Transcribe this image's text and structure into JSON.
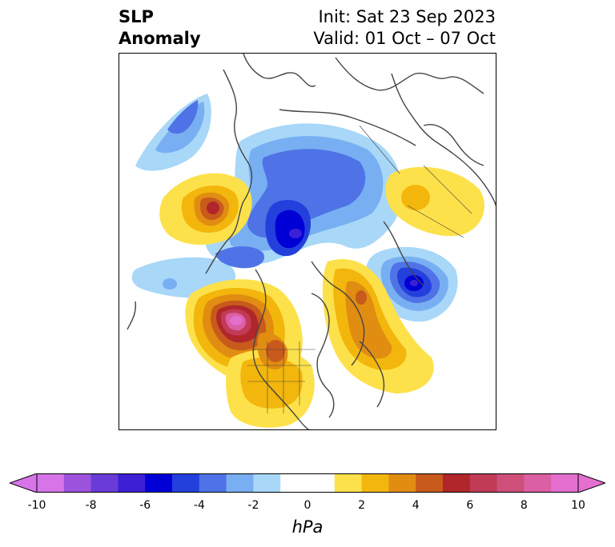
{
  "header": {
    "title_line1": "SLP",
    "title_line2": "Anomaly",
    "init": "Init: Sat 23 Sep 2023",
    "valid": "Valid: 01 Oct – 07 Oct"
  },
  "colorbar": {
    "unit": "hPa",
    "ticks": [
      "-10",
      "-8",
      "-6",
      "-4",
      "-2",
      "0",
      "2",
      "4",
      "6",
      "8",
      "10"
    ],
    "min": -10,
    "max": 10,
    "colors": [
      "#d774e8",
      "#9d52de",
      "#6a3bd7",
      "#3d1fd5",
      "#0000d6",
      "#2440dc",
      "#4f73e6",
      "#78aff2",
      "#a8d7f8",
      "#ffffff",
      "#ffffff",
      "#fde14a",
      "#f3b60c",
      "#e08d12",
      "#c85a1c",
      "#b0262a",
      "#c13b57",
      "#cf4f7b",
      "#da5fa3",
      "#e46fcf"
    ]
  },
  "colors": {
    "coast": "#444444",
    "neg_light": "#a8d7f8",
    "neg_mid": "#78aff2",
    "neg_strong": "#4f73e6",
    "neg_deep": "#2440dc",
    "neg_core": "#0000d6",
    "pos_light": "#fde14a",
    "pos_mid": "#f3b60c",
    "pos_strong": "#e08d12",
    "pos_deep": "#c85a1c",
    "pos_core": "#b0262a",
    "pos_extreme": "#c13b57",
    "pos_peak": "#da5fa3"
  }
}
